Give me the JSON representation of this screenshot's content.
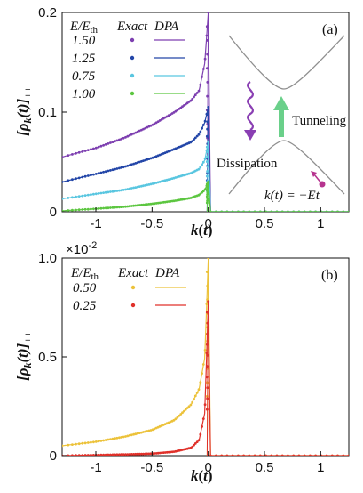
{
  "colors": {
    "purple": "#7d3fb0",
    "darkblue": "#2346a8",
    "cyan": "#59c6e0",
    "green": "#5cc640",
    "yellow": "#ecc23a",
    "red": "#e0312a",
    "inset_curve": "#888888",
    "inset_arrow": "#6ad08a",
    "inset_wave": "#8a3fb3",
    "inset_dot": "#b6348f"
  },
  "chart_data": [
    {
      "type": "line",
      "panel_label": "(a)",
      "xlabel": "k(t)",
      "ylabel": "[ρ_k(t)]_++",
      "xlim": [
        -1.3,
        1.25
      ],
      "ylim": [
        0,
        0.2
      ],
      "xticks": [
        -1,
        -0.5,
        0,
        0.5,
        1
      ],
      "xtick_labels": [
        "-1",
        "-0.5",
        "0",
        "0.5",
        "1"
      ],
      "yticks": [
        0,
        0.1,
        0.2
      ],
      "ytick_labels": [
        "0",
        "0.1",
        "0.2"
      ],
      "legend": {
        "header": [
          "E/E_th",
          "Exact",
          "DPA"
        ],
        "placement": "top-left"
      },
      "series": [
        {
          "name": "1.50",
          "color_key": "purple",
          "peak": 0.2,
          "x": [
            -1.3,
            -1.0,
            -0.75,
            -0.5,
            -0.3,
            -0.15,
            -0.08,
            -0.03,
            0.0
          ],
          "values": [
            0.055,
            0.064,
            0.074,
            0.087,
            0.1,
            0.112,
            0.122,
            0.15,
            0.2
          ]
        },
        {
          "name": "1.25",
          "color_key": "darkblue",
          "peak": 0.105,
          "x": [
            -1.3,
            -1.0,
            -0.75,
            -0.5,
            -0.3,
            -0.15,
            -0.08,
            -0.03,
            0.0
          ],
          "values": [
            0.03,
            0.038,
            0.045,
            0.054,
            0.063,
            0.07,
            0.078,
            0.09,
            0.105
          ]
        },
        {
          "name": "0.75",
          "color_key": "cyan",
          "peak": 0.07,
          "x": [
            -1.3,
            -1.0,
            -0.75,
            -0.5,
            -0.3,
            -0.15,
            -0.08,
            -0.03,
            0.0
          ],
          "values": [
            0.013,
            0.018,
            0.022,
            0.028,
            0.034,
            0.039,
            0.043,
            0.052,
            0.07
          ]
        },
        {
          "name": "1.00",
          "color_key": "green",
          "peak": 0.03,
          "x": [
            -1.3,
            -1.0,
            -0.75,
            -0.5,
            -0.3,
            -0.15,
            -0.08,
            -0.03,
            0.0
          ],
          "values": [
            0.001,
            0.003,
            0.005,
            0.008,
            0.011,
            0.014,
            0.017,
            0.022,
            0.03
          ]
        }
      ],
      "inset": {
        "tunneling": "Tunneling",
        "dissipation": "Dissipation",
        "relation": "k(t) = −Et"
      }
    },
    {
      "type": "line",
      "panel_label": "(b)",
      "xlabel": "k(t)",
      "ylabel": "[ρ_k(t)]_++",
      "y_multiplier": "×10",
      "y_multiplier_exp": "-2",
      "xlim": [
        -1.3,
        1.25
      ],
      "ylim": [
        0,
        1.0
      ],
      "xticks": [
        -1,
        -0.5,
        0,
        0.5,
        1
      ],
      "xtick_labels": [
        "-1",
        "-0.5",
        "0",
        "0.5",
        "1"
      ],
      "yticks": [
        0,
        0.5,
        1.0
      ],
      "ytick_labels": [
        "0",
        "0.5",
        "1.0"
      ],
      "legend": {
        "header": [
          "E/E_th",
          "Exact",
          "DPA"
        ],
        "placement": "top-left"
      },
      "series": [
        {
          "name": "0.50",
          "color_key": "yellow",
          "peak": 1.0,
          "x": [
            -1.3,
            -1.0,
            -0.75,
            -0.5,
            -0.3,
            -0.15,
            -0.08,
            -0.03,
            0.0
          ],
          "values": [
            0.05,
            0.07,
            0.095,
            0.13,
            0.18,
            0.26,
            0.34,
            0.5,
            1.0
          ]
        },
        {
          "name": "0.25",
          "color_key": "red",
          "peak": 0.78,
          "x": [
            -1.3,
            -1.0,
            -0.75,
            -0.5,
            -0.3,
            -0.15,
            -0.08,
            -0.03,
            0.0
          ],
          "values": [
            0.0,
            0.003,
            0.006,
            0.01,
            0.02,
            0.04,
            0.08,
            0.22,
            0.78
          ]
        }
      ]
    }
  ]
}
